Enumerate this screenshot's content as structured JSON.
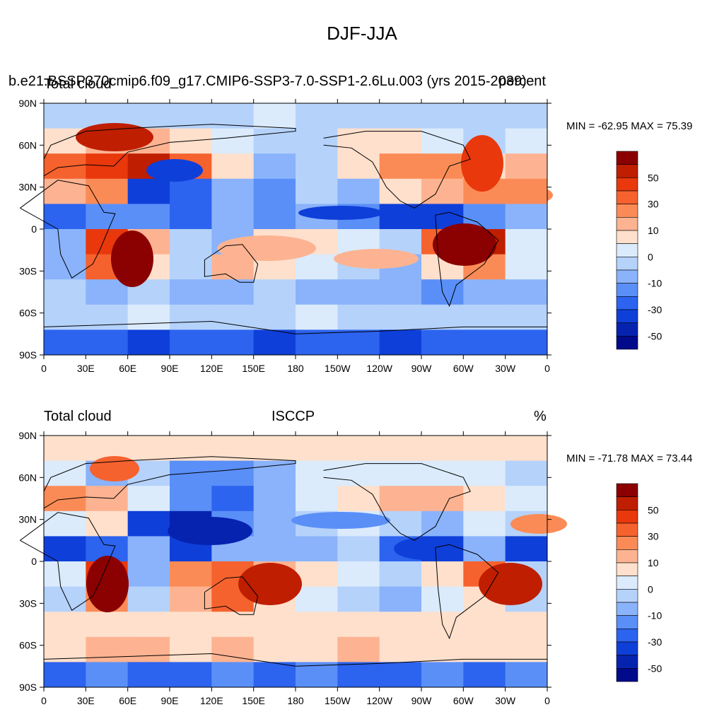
{
  "figure_title": "DJF-JJA",
  "panels": [
    {
      "id": "top",
      "left_title": "Total cloud",
      "center_title": "",
      "right_title": "",
      "overlay_title": "b.e21.BSSP370cmip6.f09_g17.CMIP6-SSP3-7.0-SSP1-2.6Lu.003 (yrs 2015-2039)",
      "overlay_right": "percent",
      "stats": "MIN = -62.95 MAX =  75.39"
    },
    {
      "id": "bottom",
      "left_title": "Total cloud",
      "center_title": "ISCCP",
      "right_title": "%",
      "overlay_title": "",
      "overlay_right": "",
      "stats": "MIN = -71.78 MAX =  73.44"
    }
  ],
  "axes": {
    "lon_ticks": [
      "0",
      "30E",
      "60E",
      "90E",
      "120E",
      "150E",
      "180",
      "150W",
      "120W",
      "90W",
      "60W",
      "30W",
      "0"
    ],
    "lat_ticks": [
      "90N",
      "60N",
      "30N",
      "0",
      "30S",
      "60S",
      "90S"
    ]
  },
  "colorbar": {
    "labels": [
      "50",
      "30",
      "10",
      "0",
      "-10",
      "-30",
      "-50"
    ],
    "colors": [
      "#8b0000",
      "#bf1e00",
      "#e8380c",
      "#f6622e",
      "#fb8b56",
      "#fdb391",
      "#fee0cc",
      "#dbebfc",
      "#b5d2fb",
      "#8ab3fb",
      "#5a8ff8",
      "#2c63ef",
      "#0f3fd9",
      "#0623b0",
      "#000a8a"
    ]
  },
  "chart_data": {
    "type": "heatmap",
    "title": "DJF-JJA",
    "variable": "Total cloud",
    "units": "%",
    "x_range": [
      "0",
      "0"
    ],
    "y_range": [
      "90S",
      "90N"
    ],
    "contour_levels": [
      -60,
      -50,
      -40,
      -30,
      -20,
      -10,
      -5,
      0,
      5,
      10,
      20,
      30,
      40,
      50,
      60
    ],
    "panels": [
      {
        "left_title": "Total cloud",
        "min": -62.95,
        "max": 75.39
      },
      {
        "left_title": "Total cloud",
        "center_title": "ISCCP",
        "right_title": "%",
        "min": -71.78,
        "max": 73.44
      }
    ]
  }
}
